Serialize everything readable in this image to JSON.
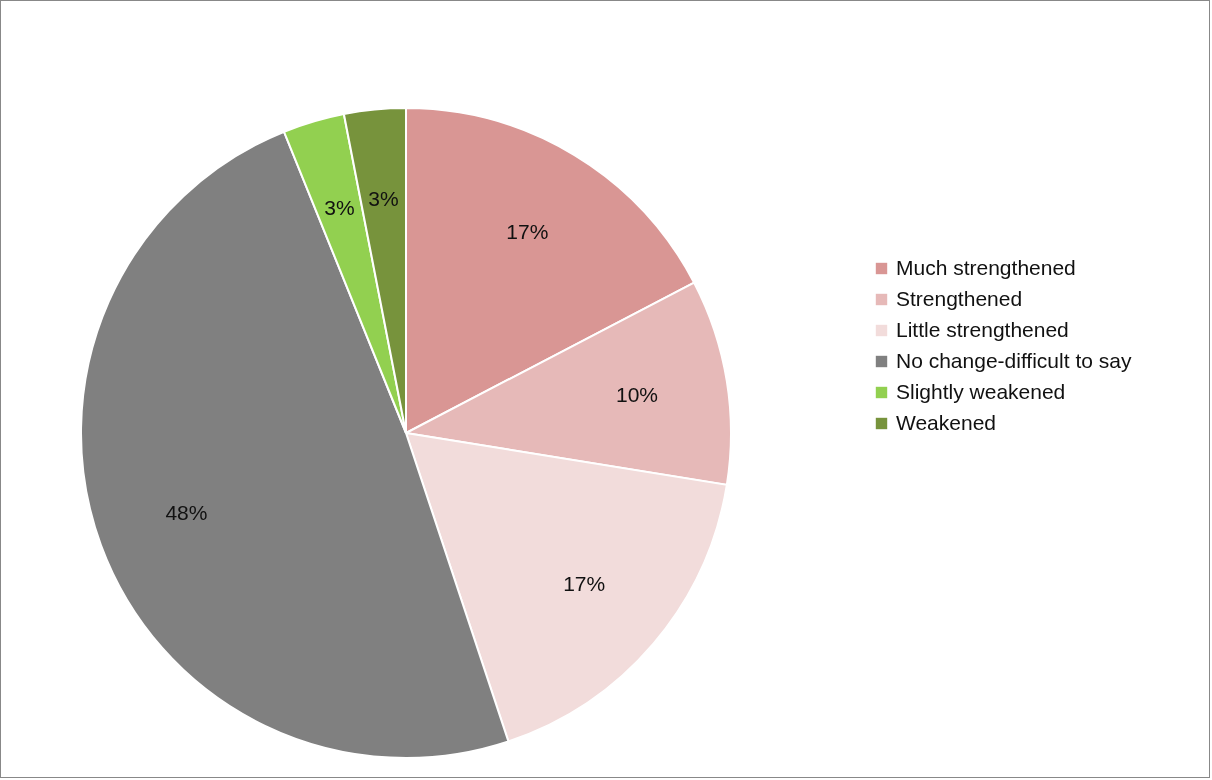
{
  "chart_data": {
    "type": "pie",
    "categories": [
      "Much strengthened",
      "Strengthened",
      "Little strengthened",
      "No change-difficult to say",
      "Slightly weakened",
      "Weakened"
    ],
    "values": [
      17,
      10,
      17,
      48,
      3,
      3
    ],
    "value_labels": [
      "17%",
      "10%",
      "17%",
      "48%",
      "3%",
      "3%"
    ],
    "colors": [
      "#d99694",
      "#e6b9b8",
      "#f2dcdb",
      "#808080",
      "#92d050",
      "#77933c"
    ],
    "legend": "right"
  }
}
